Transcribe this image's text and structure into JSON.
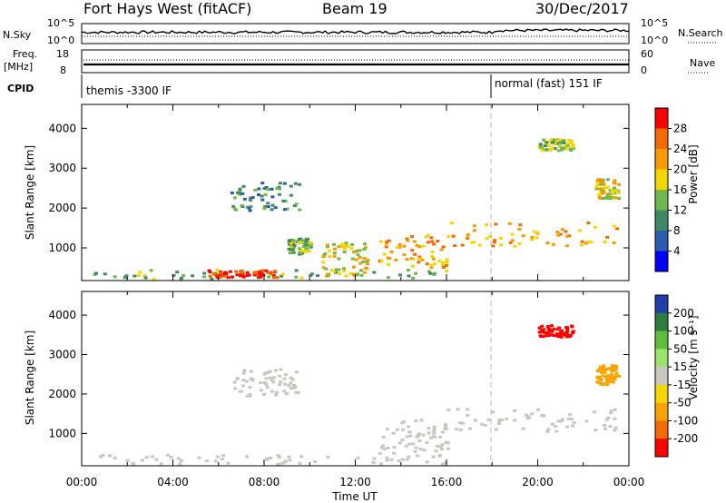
{
  "header": {
    "title": "Fort Hays West (fitACF)",
    "beam": "Beam 19",
    "date": "30/Dec/2017"
  },
  "top_panels": {
    "nsky_label": "N.Sky",
    "nsky_ticks": [
      "10^5",
      "10^0"
    ],
    "nsearch_label": "N.Search",
    "nsearch_ticks": [
      "10^5",
      "10^0"
    ],
    "freq_label_1": "Freq.",
    "freq_label_2": "[MHz]",
    "freq_ticks": [
      "18",
      "8"
    ],
    "nave_label": "Nave",
    "nave_ticks": [
      "60",
      "0"
    ],
    "cpid_label": "CPID",
    "cpid_segments": [
      {
        "label": "themis -3300 IF",
        "start_hour": 0
      },
      {
        "label": "normal (fast) 151 IF",
        "start_hour": 18
      }
    ]
  },
  "x_axis": {
    "label": "Time UT",
    "ticks": [
      "00:00",
      "04:00",
      "08:00",
      "12:00",
      "16:00",
      "20:00",
      "00:00"
    ]
  },
  "chart_data": [
    {
      "type": "heatmap",
      "name": "power",
      "ylabel": "Slant Range [km]",
      "xlabel": "Time UT",
      "xlim": [
        0,
        24
      ],
      "ylim": [
        180,
        4600
      ],
      "yticks": [
        "1000",
        "2000",
        "3000",
        "4000"
      ],
      "colorbar_label": "Power [dB]",
      "colorbar_ticks": [
        "4",
        "8",
        "12",
        "16",
        "20",
        "24",
        "28"
      ],
      "colorbar_colors": [
        "#0000ff",
        "#2a5cb0",
        "#3f8a66",
        "#6fb84e",
        "#f5d700",
        "#f79a00",
        "#f46a00",
        "#ff0000"
      ],
      "echo_regions": [
        {
          "t": [
            0.5,
            16.0
          ],
          "r": [
            180,
            420
          ],
          "level": 3
        },
        {
          "t": [
            5.5,
            8.5
          ],
          "r": [
            220,
            400
          ],
          "level": 7
        },
        {
          "t": [
            13.0,
            16.0
          ],
          "r": [
            450,
            1300
          ],
          "level": 5
        },
        {
          "t": [
            10.5,
            12.5
          ],
          "r": [
            250,
            1100
          ],
          "level": 4
        },
        {
          "t": [
            9.0,
            10.0
          ],
          "r": [
            800,
            1200
          ],
          "level": 3
        },
        {
          "t": [
            16.0,
            23.5
          ],
          "r": [
            1000,
            1600
          ],
          "level": 5
        },
        {
          "t": [
            6.5,
            9.5
          ],
          "r": [
            1900,
            2600
          ],
          "level": 2
        },
        {
          "t": [
            20.0,
            21.5
          ],
          "r": [
            3400,
            3700
          ],
          "level": 3
        },
        {
          "t": [
            22.5,
            23.5
          ],
          "r": [
            2200,
            2700
          ],
          "level": 4
        }
      ]
    },
    {
      "type": "heatmap",
      "name": "velocity",
      "ylabel": "Slant Range [km]",
      "xlabel": "Time UT",
      "xlim": [
        0,
        24
      ],
      "ylim": [
        180,
        4600
      ],
      "yticks": [
        "1000",
        "2000",
        "3000",
        "4000"
      ],
      "colorbar_label": "Velocity [m s⁻¹]",
      "colorbar_ticks": [
        "200",
        "100",
        "50",
        "15",
        "-15",
        "-50",
        "-100",
        "-200"
      ],
      "colorbar_colors": [
        "#1f3ea8",
        "#2e7d3e",
        "#5cbf3a",
        "#9be36b",
        "#c8c8c0",
        "#f5d700",
        "#f7a300",
        "#f46a00",
        "#ff0000"
      ],
      "echo_regions": [
        {
          "t": [
            0.5,
            16.0
          ],
          "r": [
            180,
            420
          ],
          "v": -30
        },
        {
          "t": [
            13.0,
            16.0
          ],
          "r": [
            450,
            1300
          ],
          "v": 0
        },
        {
          "t": [
            16.0,
            23.5
          ],
          "r": [
            1000,
            1600
          ],
          "v": 0
        },
        {
          "t": [
            6.5,
            9.5
          ],
          "r": [
            1900,
            2600
          ],
          "v": 0
        },
        {
          "t": [
            20.0,
            21.5
          ],
          "r": [
            3400,
            3700
          ],
          "v": -200
        },
        {
          "t": [
            22.5,
            23.5
          ],
          "r": [
            2200,
            2700
          ],
          "v": -60
        }
      ]
    }
  ]
}
